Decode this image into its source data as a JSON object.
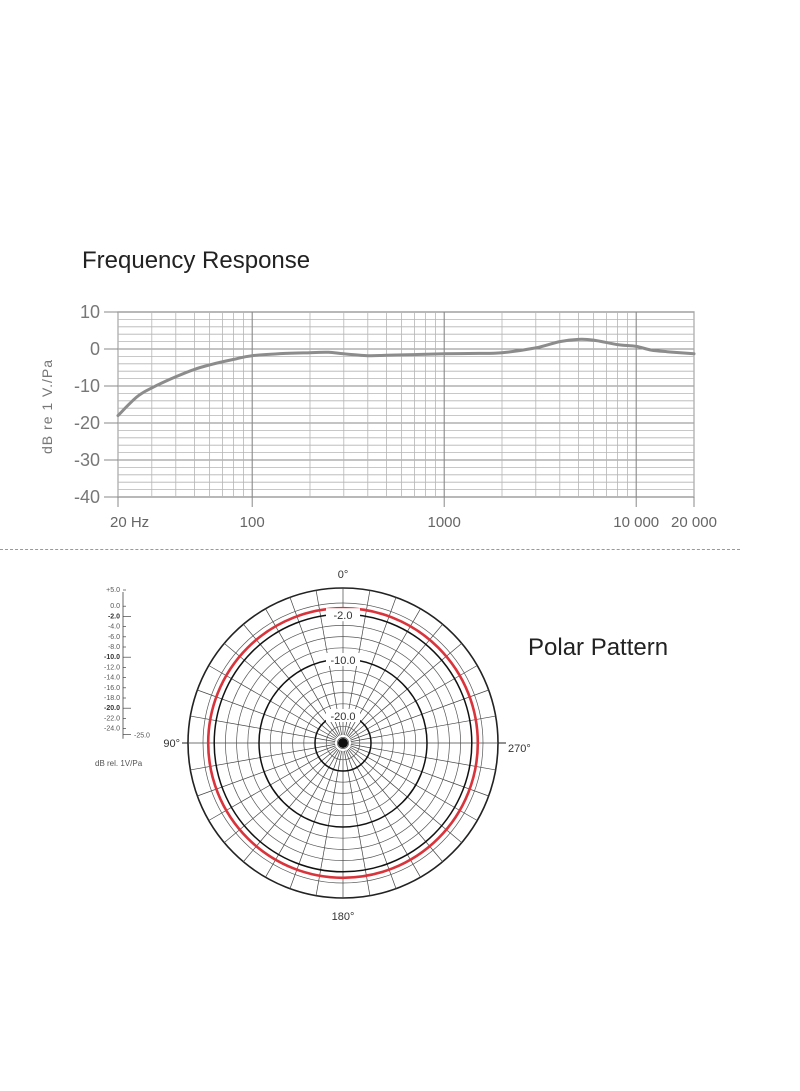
{
  "frequency_response": {
    "title": "Frequency Response"
  },
  "polar_pattern": {
    "title": "Polar Pattern"
  },
  "chart_data": [
    {
      "type": "line",
      "title": "Frequency Response",
      "ylabel": "dB re 1 V./Pa",
      "xlabel": "",
      "xscale": "log",
      "xlim": [
        20,
        20000
      ],
      "ylim": [
        -40,
        10
      ],
      "xticks": [
        "20 Hz",
        "100",
        "1000",
        "10 000",
        "20 000"
      ],
      "xtick_values": [
        20,
        100,
        1000,
        10000,
        20000
      ],
      "yticks": [
        "10",
        "0",
        "-10",
        "-20",
        "-30",
        "-40"
      ],
      "ytick_values": [
        10,
        0,
        -10,
        -20,
        -30,
        -40
      ],
      "grid": true,
      "x": [
        20,
        25,
        30,
        40,
        50,
        60,
        80,
        100,
        150,
        200,
        250,
        300,
        400,
        500,
        700,
        1000,
        1500,
        2000,
        3000,
        4000,
        5000,
        6000,
        8000,
        10000,
        12000,
        15000,
        20000
      ],
      "y": [
        -18,
        -13,
        -10.5,
        -7.5,
        -5.5,
        -4.3,
        -2.8,
        -1.8,
        -1.2,
        -1.0,
        -0.9,
        -1.3,
        -1.8,
        -1.7,
        -1.5,
        -1.3,
        -1.2,
        -1.0,
        0.3,
        2,
        2.6,
        2.4,
        1.2,
        0.7,
        -0.3,
        -0.8,
        -1.3
      ],
      "series_color": "#8c8c8c"
    },
    {
      "type": "polar",
      "title": "Polar Pattern",
      "angle_labels": [
        "0°",
        "90°",
        "180°",
        "270°"
      ],
      "angle_values": [
        0,
        90,
        180,
        270
      ],
      "ring_labels": [
        "-2.0",
        "-10.0",
        "-20.0"
      ],
      "ring_values": [
        -2.0,
        -10.0,
        -20.0
      ],
      "radial_scale": {
        "labels": [
          "+5.0",
          "0.0",
          "-2.0",
          "-4.0",
          "-6.0",
          "-8.0",
          "-10.0",
          "-12.0",
          "-14.0",
          "-16.0",
          "-18.0",
          "-20.0",
          "-22.0",
          "-24.0",
          "-25.0"
        ],
        "bold": [
          "-2.0",
          "-10.0",
          "-20.0"
        ],
        "unit": "dB rel. 1V/Pa"
      },
      "series": [
        {
          "pattern": "omnidirectional",
          "level_db": -2.0,
          "color": "#d9343b"
        }
      ]
    }
  ]
}
